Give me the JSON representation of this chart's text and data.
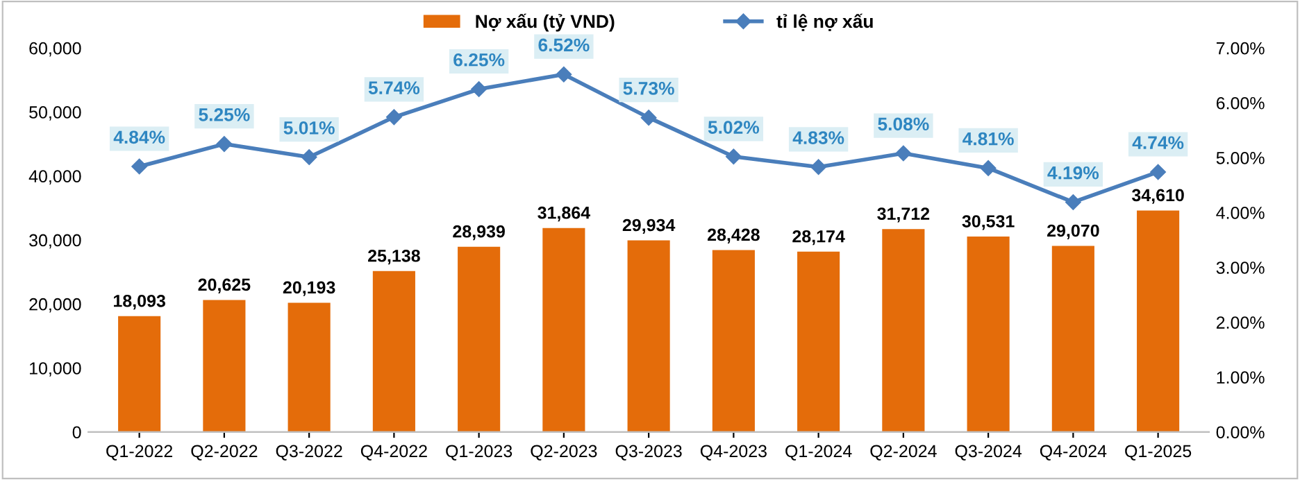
{
  "chart_data": {
    "type": "bar",
    "categories": [
      "Q1-2022",
      "Q2-2022",
      "Q3-2022",
      "Q4-2022",
      "Q1-2023",
      "Q2-2023",
      "Q3-2023",
      "Q4-2023",
      "Q1-2024",
      "Q2-2024",
      "Q3-2024",
      "Q4-2024",
      "Q1-2025"
    ],
    "series": [
      {
        "name": "Nợ xấu (tỷ VND)",
        "color": "#e46c0a",
        "values": [
          18093,
          20625,
          20193,
          25138,
          28939,
          31864,
          29934,
          28428,
          28174,
          31712,
          30531,
          29070,
          34610
        ],
        "value_labels": [
          "18,093",
          "20,625",
          "20,193",
          "25,138",
          "28,939",
          "31,864",
          "29,934",
          "28,428",
          "28,174",
          "31,712",
          "30,531",
          "29,070",
          "34,610"
        ]
      },
      {
        "name": "tỉ lệ nợ xấu",
        "type": "line",
        "axis": "y2",
        "color": "#4a7ebb",
        "marker": "diamond",
        "values": [
          4.84,
          5.25,
          5.01,
          5.74,
          6.25,
          6.52,
          5.73,
          5.02,
          4.83,
          5.08,
          4.81,
          4.19,
          4.74
        ],
        "value_labels": [
          "4.84%",
          "5.25%",
          "5.01%",
          "5.74%",
          "6.25%",
          "6.52%",
          "5.73%",
          "5.02%",
          "4.83%",
          "5.08%",
          "4.81%",
          "4.19%",
          "4.74%"
        ]
      }
    ],
    "ylim": [
      0,
      60000
    ],
    "yticks": [
      {
        "value": 0,
        "label": "0"
      },
      {
        "value": 10000,
        "label": "10,000"
      },
      {
        "value": 20000,
        "label": "20,000"
      },
      {
        "value": 30000,
        "label": "30,000"
      },
      {
        "value": 40000,
        "label": "40,000"
      },
      {
        "value": 50000,
        "label": "50,000"
      },
      {
        "value": 60000,
        "label": "60,000"
      }
    ],
    "y2lim": [
      0,
      7
    ],
    "y2ticks": [
      {
        "value": 0,
        "label": "0.00%"
      },
      {
        "value": 1,
        "label": "1.00%"
      },
      {
        "value": 2,
        "label": "2.00%"
      },
      {
        "value": 3,
        "label": "3.00%"
      },
      {
        "value": 4,
        "label": "4.00%"
      },
      {
        "value": 5,
        "label": "5.00%"
      },
      {
        "value": 6,
        "label": "6.00%"
      },
      {
        "value": 7,
        "label": "7.00%"
      }
    ],
    "legend": "top"
  }
}
